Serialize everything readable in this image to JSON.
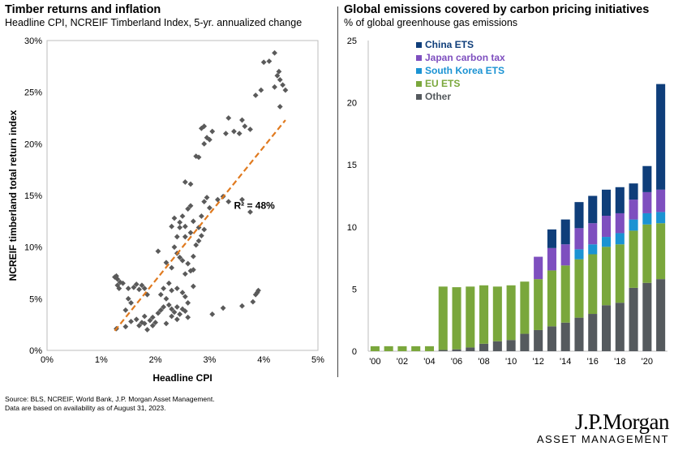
{
  "left": {
    "title": "Timber returns and inflation",
    "subtitle": "Headline CPI, NCREIF Timberland Index, 5-yr. annualized change"
  },
  "right": {
    "title": "Global emissions covered by carbon pricing initiatives",
    "subtitle": "% of global greenhouse gas emissions"
  },
  "source": {
    "line1": "Source: BLS, NCREIF, World Bank, J.P. Morgan Asset Management.",
    "line2": "Data are based on availability as of August 31, 2023."
  },
  "logo": {
    "main": "J.P.Morgan",
    "sub": "ASSET MANAGEMENT"
  },
  "chart_data": [
    {
      "type": "scatter",
      "xlabel": "Headline CPI",
      "ylabel": "NCREIF timberland total return index",
      "xlim": [
        0,
        5
      ],
      "ylim": [
        0,
        30
      ],
      "x_ticks": [
        "0%",
        "1%",
        "2%",
        "3%",
        "4%",
        "5%"
      ],
      "y_ticks": [
        "0%",
        "5%",
        "10%",
        "15%",
        "20%",
        "25%",
        "30%"
      ],
      "annotation": "R² = 48%",
      "annotation_x": 3.45,
      "annotation_y": 13.7,
      "trendline": {
        "x": [
          1.25,
          4.4
        ],
        "y": [
          1.9,
          22.3
        ]
      },
      "colors": {
        "points": "#5a5a5a",
        "trendline": "#e07a1f"
      },
      "points": [
        [
          1.25,
          7.1
        ],
        [
          1.3,
          6.9
        ],
        [
          1.35,
          6.6
        ],
        [
          1.3,
          6.3
        ],
        [
          1.4,
          6.5
        ],
        [
          1.28,
          7.2
        ],
        [
          1.33,
          6.0
        ],
        [
          1.5,
          5.0
        ],
        [
          1.55,
          4.6
        ],
        [
          1.45,
          3.9
        ],
        [
          1.6,
          6.1
        ],
        [
          1.65,
          6.4
        ],
        [
          1.7,
          5.9
        ],
        [
          1.75,
          6.3
        ],
        [
          1.8,
          6.0
        ],
        [
          1.85,
          5.4
        ],
        [
          1.5,
          6.0
        ],
        [
          1.28,
          2.1
        ],
        [
          1.45,
          2.3
        ],
        [
          1.55,
          2.8
        ],
        [
          1.65,
          3.0
        ],
        [
          1.7,
          2.4
        ],
        [
          1.8,
          2.6
        ],
        [
          1.85,
          2.0
        ],
        [
          1.9,
          2.9
        ],
        [
          1.95,
          3.2
        ],
        [
          2.0,
          2.7
        ],
        [
          2.05,
          3.6
        ],
        [
          1.8,
          3.3
        ],
        [
          1.95,
          2.4
        ],
        [
          1.75,
          2.7
        ],
        [
          2.1,
          3.9
        ],
        [
          2.15,
          4.2
        ],
        [
          2.2,
          2.6
        ],
        [
          2.25,
          4.4
        ],
        [
          2.35,
          3.7
        ],
        [
          2.4,
          3.0
        ],
        [
          2.45,
          3.5
        ],
        [
          2.5,
          4.0
        ],
        [
          2.55,
          3.8
        ],
        [
          2.6,
          3.2
        ],
        [
          2.4,
          4.2
        ],
        [
          2.3,
          3.3
        ],
        [
          2.2,
          5.0
        ],
        [
          2.1,
          5.4
        ],
        [
          2.15,
          6.0
        ],
        [
          2.25,
          6.5
        ],
        [
          2.3,
          5.8
        ],
        [
          2.4,
          6.0
        ],
        [
          2.5,
          5.6
        ],
        [
          2.55,
          5.2
        ],
        [
          2.6,
          4.6
        ],
        [
          2.7,
          6.2
        ],
        [
          2.65,
          7.7
        ],
        [
          2.55,
          7.4
        ],
        [
          2.7,
          7.8
        ],
        [
          2.05,
          9.6
        ],
        [
          2.2,
          8.5
        ],
        [
          2.3,
          8.0
        ],
        [
          2.35,
          10.0
        ],
        [
          2.4,
          9.4
        ],
        [
          2.45,
          9.0
        ],
        [
          2.5,
          8.7
        ],
        [
          2.6,
          8.4
        ],
        [
          2.7,
          9.1
        ],
        [
          2.75,
          10.2
        ],
        [
          2.8,
          10.6
        ],
        [
          2.85,
          11.1
        ],
        [
          2.9,
          11.7
        ],
        [
          2.3,
          12.0
        ],
        [
          2.35,
          12.8
        ],
        [
          2.45,
          12.4
        ],
        [
          2.5,
          13.0
        ],
        [
          2.55,
          12.0
        ],
        [
          2.6,
          13.7
        ],
        [
          2.65,
          11.4
        ],
        [
          2.4,
          11.0
        ],
        [
          2.45,
          11.9
        ],
        [
          2.55,
          11.0
        ],
        [
          2.65,
          14.0
        ],
        [
          2.7,
          12.5
        ],
        [
          2.8,
          11.9
        ],
        [
          2.85,
          13.0
        ],
        [
          2.9,
          14.4
        ],
        [
          2.95,
          14.8
        ],
        [
          3.0,
          13.8
        ],
        [
          3.15,
          14.6
        ],
        [
          3.25,
          14.9
        ],
        [
          3.35,
          14.4
        ],
        [
          3.6,
          14.6
        ],
        [
          3.75,
          13.4
        ],
        [
          2.55,
          16.3
        ],
        [
          2.65,
          16.1
        ],
        [
          2.75,
          18.8
        ],
        [
          2.8,
          18.7
        ],
        [
          2.85,
          21.5
        ],
        [
          2.9,
          21.7
        ],
        [
          2.95,
          20.6
        ],
        [
          3.0,
          20.4
        ],
        [
          2.9,
          20.0
        ],
        [
          3.05,
          21.2
        ],
        [
          3.3,
          21.0
        ],
        [
          3.45,
          21.2
        ],
        [
          3.6,
          22.3
        ],
        [
          3.65,
          21.7
        ],
        [
          3.75,
          21.4
        ],
        [
          3.55,
          21.0
        ],
        [
          3.35,
          22.5
        ],
        [
          3.85,
          24.7
        ],
        [
          3.95,
          25.2
        ],
        [
          4.0,
          27.9
        ],
        [
          4.1,
          28.0
        ],
        [
          4.2,
          28.8
        ],
        [
          4.25,
          26.6
        ],
        [
          4.3,
          26.2
        ],
        [
          4.35,
          25.7
        ],
        [
          4.4,
          25.2
        ],
        [
          4.3,
          23.6
        ],
        [
          4.2,
          25.5
        ],
        [
          4.28,
          27.0
        ],
        [
          3.6,
          4.3
        ],
        [
          3.8,
          4.7
        ],
        [
          3.85,
          5.4
        ],
        [
          3.9,
          5.8
        ],
        [
          3.88,
          5.6
        ],
        [
          3.25,
          4.1
        ],
        [
          3.05,
          3.5
        ],
        [
          2.3,
          4.0
        ]
      ]
    },
    {
      "type": "bar",
      "stacked": true,
      "ylim": [
        0,
        25
      ],
      "y_ticks": [
        "0",
        "5",
        "10",
        "15",
        "20",
        "25"
      ],
      "categories": [
        "2000",
        "2001",
        "2002",
        "2003",
        "2004",
        "2005",
        "2006",
        "2007",
        "2008",
        "2009",
        "2010",
        "2011",
        "2012",
        "2013",
        "2014",
        "2015",
        "2016",
        "2017",
        "2018",
        "2019",
        "2020",
        "2021"
      ],
      "x_tick_labels": [
        "'00",
        "'02",
        "'04",
        "'06",
        "'08",
        "'10",
        "'12",
        "'14",
        "'16",
        "'18",
        "'20"
      ],
      "legend_position": "top-left",
      "series": [
        {
          "name": "Other",
          "color": "#555a5e",
          "values": [
            0,
            0,
            0,
            0,
            0,
            0.1,
            0.15,
            0.3,
            0.6,
            0.8,
            0.9,
            1.4,
            1.7,
            2.0,
            2.3,
            2.7,
            3.0,
            3.7,
            3.9,
            5.1,
            5.5,
            5.8
          ]
        },
        {
          "name": "EU ETS",
          "color": "#7aa73c",
          "values": [
            0.4,
            0.4,
            0.4,
            0.4,
            0.4,
            5.1,
            5.0,
            4.9,
            4.7,
            4.4,
            4.4,
            4.2,
            4.1,
            4.5,
            4.6,
            4.7,
            4.8,
            4.7,
            4.7,
            4.6,
            4.7,
            4.5
          ]
        },
        {
          "name": "South Korea ETS",
          "color": "#1b93d3",
          "values": [
            0,
            0,
            0,
            0,
            0,
            0,
            0,
            0,
            0,
            0,
            0,
            0,
            0,
            0,
            0,
            0.8,
            0.8,
            0.8,
            0.9,
            0.9,
            0.9,
            0.9
          ]
        },
        {
          "name": "Japan carbon tax",
          "color": "#7e4fbf",
          "values": [
            0,
            0,
            0,
            0,
            0,
            0,
            0,
            0,
            0,
            0,
            0,
            0,
            1.8,
            1.8,
            1.7,
            1.7,
            1.7,
            1.7,
            1.6,
            1.6,
            1.7,
            1.8
          ]
        },
        {
          "name": "China ETS",
          "color": "#0f3e7a",
          "values": [
            0,
            0,
            0,
            0,
            0,
            0,
            0,
            0,
            0,
            0,
            0,
            0,
            0,
            1.5,
            2.0,
            2.1,
            2.2,
            2.1,
            2.1,
            1.3,
            2.1,
            8.5
          ]
        }
      ],
      "legend_order": [
        "China ETS",
        "Japan carbon tax",
        "South Korea ETS",
        "EU ETS",
        "Other"
      ]
    }
  ]
}
